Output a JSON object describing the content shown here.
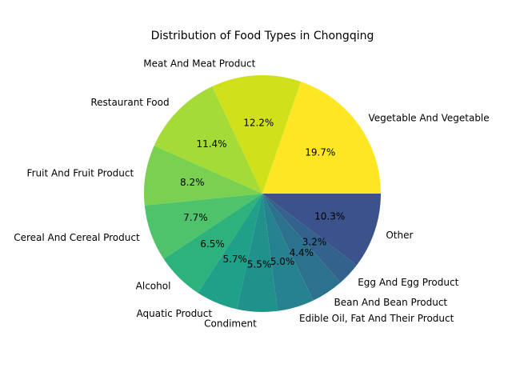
{
  "chart_data": {
    "type": "pie",
    "title": "Distribution of Food Types in Chongqing",
    "start_angle_deg": 0,
    "direction": "counterclockwise",
    "slices": [
      {
        "label": "Vegetable And Vegetable",
        "value": 19.7,
        "pct_text": "19.7%",
        "color": "#fde725"
      },
      {
        "label": "Meat And Meat Product",
        "value": 12.2,
        "pct_text": "12.2%",
        "color": "#d0e11c"
      },
      {
        "label": "Restaurant Food",
        "value": 11.4,
        "pct_text": "11.4%",
        "color": "#a5db36"
      },
      {
        "label": "Fruit And Fruit Product",
        "value": 8.2,
        "pct_text": "8.2%",
        "color": "#7ad151"
      },
      {
        "label": "Cereal And Cereal Product",
        "value": 7.7,
        "pct_text": "7.7%",
        "color": "#4ec36b"
      },
      {
        "label": "Alcohol",
        "value": 6.5,
        "pct_text": "6.5%",
        "color": "#2db27d"
      },
      {
        "label": "Aquatic Product",
        "value": 5.7,
        "pct_text": "5.7%",
        "color": "#1fa088"
      },
      {
        "label": "Condiment",
        "value": 5.5,
        "pct_text": "5.5%",
        "color": "#21918c"
      },
      {
        "label": "Edible Oil, Fat And Their Product",
        "value": 5.0,
        "pct_text": "5.0%",
        "color": "#26828e"
      },
      {
        "label": "Bean And Bean Product",
        "value": 4.4,
        "pct_text": "4.4%",
        "color": "#2c728e"
      },
      {
        "label": "Egg And Egg Product",
        "value": 3.2,
        "pct_text": "3.2%",
        "color": "#33638d"
      },
      {
        "label": "Other",
        "value": 10.3,
        "pct_text": "10.3%",
        "color": "#3b528b"
      }
    ]
  }
}
